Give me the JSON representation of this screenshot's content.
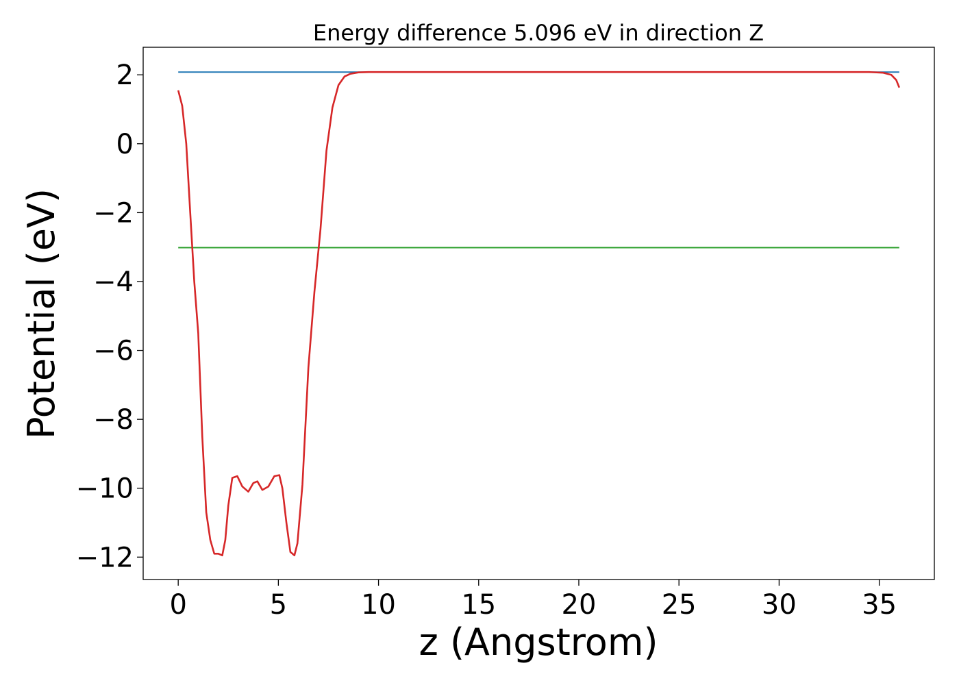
{
  "chart_data": {
    "type": "line",
    "title": "Energy difference 5.096 eV in direction Z",
    "xlabel": "z (Angstrom)",
    "ylabel": "Potential (eV)",
    "xlim": [
      -1.75,
      37.75
    ],
    "ylim": [
      -12.65,
      2.8
    ],
    "grid": false,
    "x_ticks": [
      0,
      5,
      10,
      15,
      20,
      25,
      30,
      35
    ],
    "x_tick_labels": [
      "0",
      "5",
      "10",
      "15",
      "20",
      "25",
      "30",
      "35"
    ],
    "y_ticks": [
      2,
      0,
      -2,
      -4,
      -6,
      -8,
      -10,
      -12
    ],
    "y_tick_labels": [
      "2",
      "0",
      "−2",
      "−4",
      "−6",
      "−8",
      "−10",
      "−12"
    ],
    "series": [
      {
        "color": "#1f77b4",
        "x": [
          0,
          36
        ],
        "y": [
          2.08,
          2.08
        ]
      },
      {
        "color": "#2ca02c",
        "x": [
          0,
          36
        ],
        "y": [
          -3.016,
          -3.016
        ]
      },
      {
        "color": "#d62728",
        "x": [
          0.0,
          0.2,
          0.4,
          0.6,
          0.8,
          1.0,
          1.2,
          1.4,
          1.6,
          1.8,
          2.0,
          2.2,
          2.35,
          2.5,
          2.7,
          2.95,
          3.2,
          3.5,
          3.75,
          3.95,
          4.2,
          4.5,
          4.8,
          5.05,
          5.2,
          5.4,
          5.6,
          5.8,
          5.95,
          6.2,
          6.5,
          6.8,
          7.1,
          7.4,
          7.7,
          8.0,
          8.3,
          8.6,
          9.0,
          9.5,
          10.0,
          12.0,
          15.0,
          20.0,
          25.0,
          30.0,
          33.0,
          34.5,
          35.2,
          35.6,
          35.85,
          36.0
        ],
        "y": [
          1.55,
          1.1,
          0.0,
          -2.0,
          -4.0,
          -5.5,
          -8.5,
          -10.7,
          -11.5,
          -11.9,
          -11.9,
          -11.95,
          -11.5,
          -10.5,
          -9.7,
          -9.65,
          -9.95,
          -10.1,
          -9.85,
          -9.8,
          -10.05,
          -9.95,
          -9.65,
          -9.62,
          -10.0,
          -11.0,
          -11.85,
          -11.95,
          -11.6,
          -9.9,
          -6.5,
          -4.3,
          -2.5,
          -0.2,
          1.05,
          1.7,
          1.95,
          2.03,
          2.07,
          2.08,
          2.08,
          2.08,
          2.08,
          2.08,
          2.08,
          2.08,
          2.08,
          2.08,
          2.06,
          2.0,
          1.85,
          1.63
        ]
      }
    ]
  }
}
